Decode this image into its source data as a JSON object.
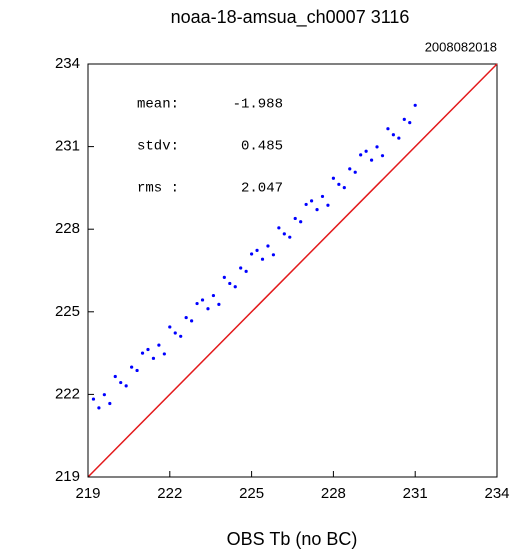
{
  "chart_data": {
    "type": "scatter",
    "title": "noaa-18-amsua_ch0007    3116",
    "subtitle": "2008082018",
    "x_label": "OBS Tb (no BC)",
    "annotations": [
      {
        "label": "mean:",
        "value": -1.988
      },
      {
        "label": "stdv:",
        "value": 0.485
      },
      {
        "label": "rms :",
        "value": 2.047
      }
    ],
    "xlim": [
      219,
      234
    ],
    "ylim": [
      219,
      234
    ],
    "xticks": [
      219,
      222,
      225,
      228,
      231,
      234
    ],
    "yticks": [
      219,
      222,
      225,
      228,
      231,
      234
    ],
    "grid": false,
    "color": "#0000ff",
    "reference_color": "#e31a1c",
    "x": [
      219.2,
      219.4,
      219.6,
      219.8,
      220.0,
      220.2,
      220.4,
      220.6,
      220.8,
      221.0,
      221.2,
      221.4,
      221.6,
      221.8,
      222.0,
      222.2,
      222.4,
      222.6,
      222.8,
      223.0,
      223.2,
      223.4,
      223.6,
      223.8,
      224.0,
      224.2,
      224.4,
      224.6,
      224.8,
      225.0,
      225.2,
      225.4,
      225.6,
      225.8,
      226.0,
      226.2,
      226.4,
      226.6,
      226.8,
      227.0,
      227.2,
      227.4,
      227.6,
      227.8,
      228.0,
      228.2,
      228.4,
      228.6,
      228.8,
      229.0,
      229.2,
      229.4,
      229.6,
      229.8,
      230.0,
      230.2,
      230.4,
      230.6,
      230.8,
      231.0
    ],
    "values": [
      221.83,
      221.51,
      221.99,
      221.67,
      222.65,
      222.43,
      222.31,
      222.99,
      222.87,
      223.5,
      223.63,
      223.31,
      223.79,
      223.47,
      224.45,
      224.23,
      224.11,
      224.79,
      224.67,
      225.3,
      225.43,
      225.11,
      225.59,
      225.27,
      226.25,
      226.03,
      225.91,
      226.59,
      226.47,
      227.1,
      227.23,
      226.91,
      227.39,
      227.07,
      228.05,
      227.83,
      227.71,
      228.39,
      228.27,
      228.9,
      229.03,
      228.71,
      229.19,
      228.87,
      229.85,
      229.63,
      229.51,
      230.19,
      230.07,
      230.7,
      230.83,
      230.51,
      230.99,
      230.67,
      231.65,
      231.43,
      231.31,
      231.99,
      231.87,
      232.5
    ]
  }
}
